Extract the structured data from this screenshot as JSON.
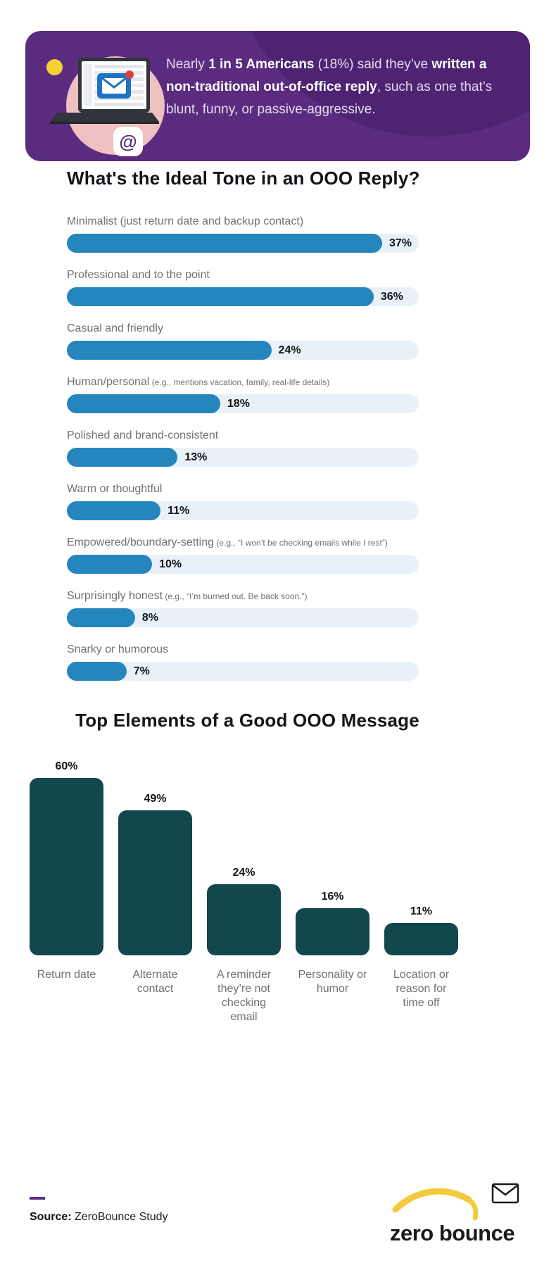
{
  "banner": {
    "text_parts": [
      {
        "t": "Nearly ",
        "bold": false
      },
      {
        "t": "1 in 5 Americans",
        "bold": true
      },
      {
        "t": " (18%) said they’ve ",
        "bold": false
      },
      {
        "t": "written a non-traditional out-of-office reply",
        "bold": true
      },
      {
        "t": ", such as one that’s blunt, funny, or passive-aggressive.",
        "bold": false
      }
    ],
    "at_symbol": "@",
    "colors": {
      "background": "#5b2b80",
      "dark_circle": "#4e2372",
      "yellow_dot": "#f6d136",
      "pink_circle": "#efc0c2",
      "email_blue": "#1d72c4",
      "notification_red": "#e03e3e"
    }
  },
  "chart_data": [
    {
      "type": "bar",
      "orientation": "horizontal",
      "title": "What's the Ideal Tone in an OOO Reply?",
      "categories": [
        "Minimalist (just return date and backup contact)",
        "Professional and to the point",
        "Casual and friendly",
        "Human/personal",
        "Polished and brand-consistent",
        "Warm or thoughtful",
        "Empowered/boundary-setting",
        "Surprisingly honest",
        "Snarky or humorous"
      ],
      "notes": [
        "",
        "",
        "",
        "(e.g., mentions vacation, family, real-life details)",
        "",
        "",
        "(e.g., “I won’t be checking emails while I rest”)",
        "(e.g., “I’m burned out. Be back soon.”)",
        ""
      ],
      "values": [
        37,
        36,
        24,
        18,
        13,
        11,
        10,
        8,
        7
      ],
      "value_suffix": "%",
      "xlim": [
        0,
        41.3
      ],
      "grid": false,
      "legend": false,
      "bar_color": "#2486bd",
      "track_color": "#e9f1f8"
    },
    {
      "type": "bar",
      "orientation": "vertical",
      "title": "Top Elements of a Good OOO Message",
      "categories": [
        "Return date",
        "Alternate contact",
        "A reminder they’re not checking email",
        "Personality or humor",
        "Location or reason for time off"
      ],
      "values": [
        60,
        49,
        24,
        16,
        11
      ],
      "value_suffix": "%",
      "ylim": [
        0,
        60
      ],
      "grid": false,
      "legend": false,
      "bar_color": "#12474d"
    }
  ],
  "footer": {
    "source_label": "Source:",
    "source_text": " ZeroBounce Study",
    "logo_text": "zero bounce",
    "logo_swoosh_color": "#f2ca3b"
  }
}
